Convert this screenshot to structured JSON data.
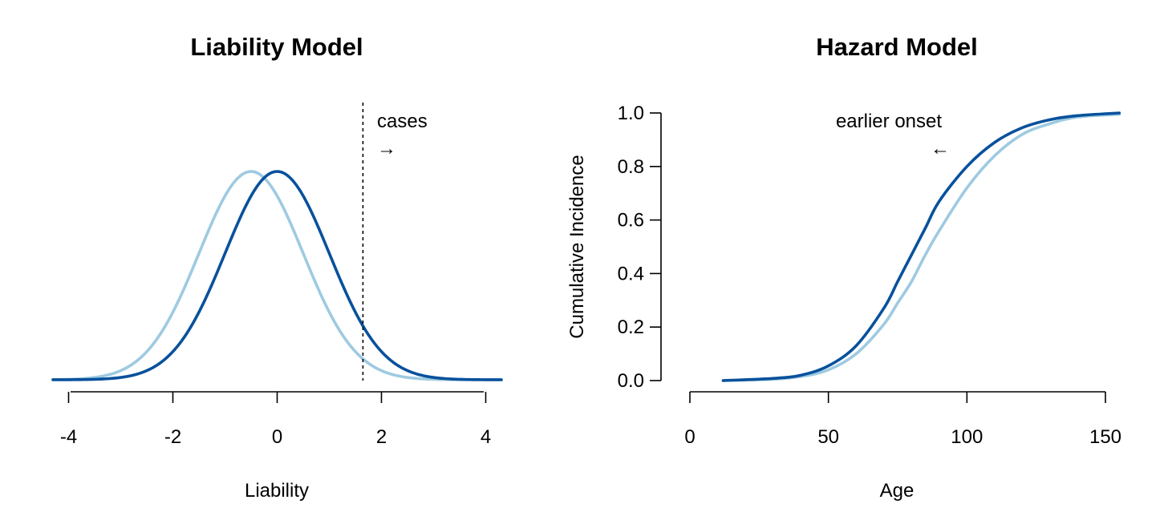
{
  "colors": {
    "light_series": "#9ecae1",
    "dark_series": "#08519c"
  },
  "chart_data": [
    {
      "type": "line",
      "title": "Liability Model",
      "xlabel": "Liability",
      "ylabel": "",
      "xlim": [
        -4.3,
        4.3
      ],
      "ylim": [
        0,
        0.4
      ],
      "x_ticks": [
        -4,
        -2,
        0,
        2,
        4
      ],
      "x_tick_labels": [
        "-4",
        "-2",
        "0",
        "2",
        "4"
      ],
      "series": [
        {
          "name": "light",
          "color": "#9ecae1",
          "distribution": "normal",
          "mean": -0.5,
          "sd": 1
        },
        {
          "name": "dark",
          "color": "#08519c",
          "distribution": "normal",
          "mean": 0,
          "sd": 1
        }
      ],
      "threshold": {
        "x": 1.645,
        "style": "dotted"
      },
      "annotation": {
        "text": "cases",
        "arrow": "→",
        "x": 1.9,
        "y": 0.39
      }
    },
    {
      "type": "line",
      "title": "Hazard Model",
      "xlabel": "Age",
      "ylabel": "Cumulative Incidence",
      "xlim": [
        0,
        157
      ],
      "ylim": [
        0,
        1
      ],
      "x_ticks": [
        0,
        50,
        100,
        150
      ],
      "x_tick_labels": [
        "0",
        "50",
        "100",
        "150"
      ],
      "y_ticks": [
        0,
        0.2,
        0.4,
        0.6,
        0.8,
        1.0
      ],
      "y_tick_labels": [
        "0.0",
        "0.2",
        "0.4",
        "0.6",
        "0.8",
        "1.0"
      ],
      "series": [
        {
          "name": "dark",
          "color": "#08519c",
          "x": [
            12,
            30,
            40,
            50,
            60,
            70,
            75,
            80,
            85,
            90,
            100,
            110,
            120,
            130,
            140,
            155
          ],
          "y": [
            0,
            0.008,
            0.02,
            0.055,
            0.13,
            0.27,
            0.37,
            0.47,
            0.57,
            0.67,
            0.8,
            0.89,
            0.945,
            0.975,
            0.99,
            1.0
          ]
        },
        {
          "name": "light",
          "color": "#9ecae1",
          "x": [
            12,
            30,
            40,
            50,
            60,
            70,
            75,
            80,
            85,
            90,
            100,
            110,
            120,
            130,
            140,
            155
          ],
          "y": [
            0,
            0.005,
            0.015,
            0.04,
            0.1,
            0.21,
            0.29,
            0.37,
            0.47,
            0.56,
            0.72,
            0.84,
            0.92,
            0.96,
            0.985,
            0.995
          ]
        }
      ],
      "annotation": {
        "text": "earlier onset",
        "arrow": "←",
        "x": 92,
        "y": 0.97
      }
    }
  ]
}
